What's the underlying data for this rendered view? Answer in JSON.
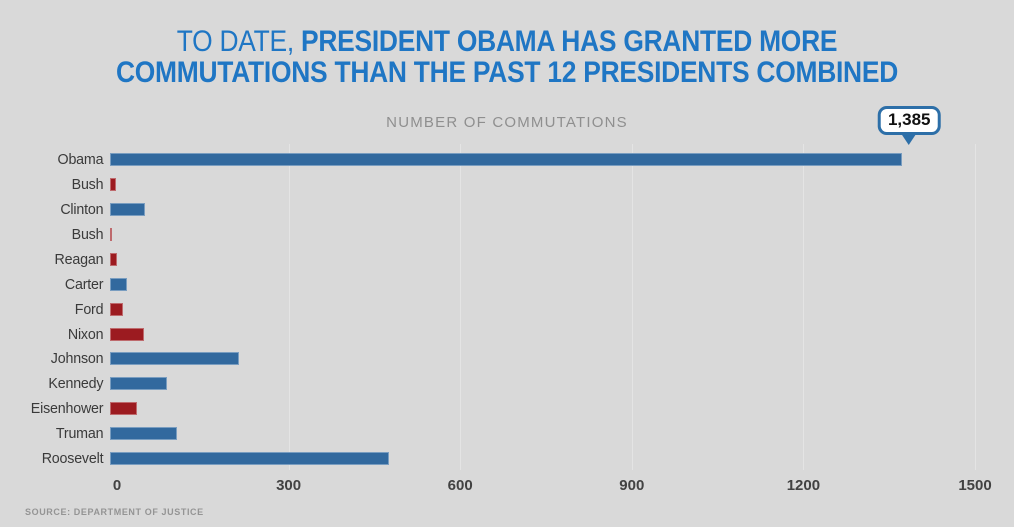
{
  "page": {
    "background": "#d9d9d9"
  },
  "title": {
    "line1_light": "TO DATE,",
    "line1_bold": " PRESIDENT OBAMA HAS GRANTED MORE",
    "line2_bold": "COMMUTATIONS THAN THE PAST 12 PRESIDENTS COMBINED",
    "color": "#1f76c4"
  },
  "chart_data": {
    "type": "bar",
    "orientation": "horizontal",
    "title": "NUMBER OF COMMUTATIONS",
    "xlabel": "NUMBER OF COMMUTATIONS",
    "ylabel": "",
    "xlim": [
      0,
      1500
    ],
    "grid": "vertical-lines-at-ticks-above-zero",
    "legend": "none",
    "categories": [
      "Obama",
      "Bush",
      "Clinton",
      "Bush",
      "Reagan",
      "Carter",
      "Ford",
      "Nixon",
      "Johnson",
      "Kennedy",
      "Eisenhower",
      "Truman",
      "Roosevelt"
    ],
    "values": [
      1385,
      11,
      61,
      3,
      13,
      29,
      22,
      60,
      226,
      100,
      47,
      118,
      488
    ],
    "bars": [
      {
        "label": "Obama",
        "value": 1385,
        "party": "blue"
      },
      {
        "label": "Bush",
        "value": 11,
        "party": "red"
      },
      {
        "label": "Clinton",
        "value": 61,
        "party": "blue"
      },
      {
        "label": "Bush",
        "value": 3,
        "party": "red"
      },
      {
        "label": "Reagan",
        "value": 13,
        "party": "red"
      },
      {
        "label": "Carter",
        "value": 29,
        "party": "blue"
      },
      {
        "label": "Ford",
        "value": 22,
        "party": "red"
      },
      {
        "label": "Nixon",
        "value": 60,
        "party": "red"
      },
      {
        "label": "Johnson",
        "value": 226,
        "party": "blue"
      },
      {
        "label": "Kennedy",
        "value": 100,
        "party": "blue"
      },
      {
        "label": "Eisenhower",
        "value": 47,
        "party": "red"
      },
      {
        "label": "Truman",
        "value": 118,
        "party": "blue"
      },
      {
        "label": "Roosevelt",
        "value": 488,
        "party": "blue"
      }
    ],
    "ticks": [
      {
        "value": 0,
        "label": "0"
      },
      {
        "value": 300,
        "label": "300"
      },
      {
        "value": 600,
        "label": "600"
      },
      {
        "value": 900,
        "label": "900"
      },
      {
        "value": 1200,
        "label": "1200"
      },
      {
        "value": 1500,
        "label": "1500"
      }
    ],
    "callout": {
      "bar": "Obama",
      "value": 1385,
      "label": "1,385"
    },
    "colors": {
      "blue": "#32699e",
      "red": "#9c1b20",
      "gridline": "#e4e4e4",
      "callout_border": "#2d6fa8"
    }
  },
  "source": {
    "text": "SOURCE: DEPARTMENT OF JUSTICE"
  }
}
